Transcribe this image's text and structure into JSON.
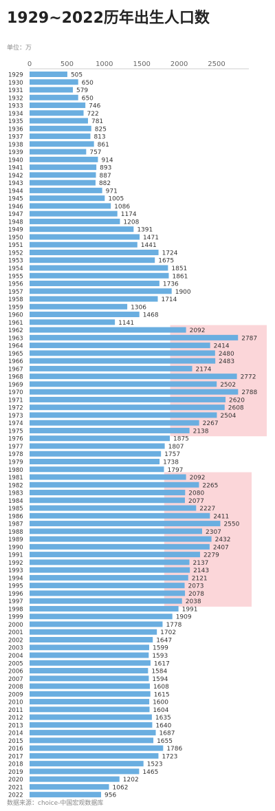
{
  "header": {
    "title": "1929~2022历年出生人口数",
    "unit_label": "单位：万"
  },
  "footer": {
    "source": "数据来源：choice-中国宏观数据库"
  },
  "colors": {
    "bar": "#6aaee0",
    "highlight": "#f9c8cc",
    "axis": "#cccccc"
  },
  "chart_data": {
    "type": "bar",
    "orientation": "horizontal",
    "xlim": [
      0,
      2800
    ],
    "xticks": [
      0,
      500,
      1000,
      1500,
      2000,
      2500
    ],
    "grid": false,
    "categories": [
      "1929",
      "1930",
      "1931",
      "1932",
      "1933",
      "1934",
      "1935",
      "1936",
      "1937",
      "1938",
      "1939",
      "1940",
      "1941",
      "1942",
      "1943",
      "1944",
      "1945",
      "1946",
      "1947",
      "1948",
      "1949",
      "1950",
      "1951",
      "1952",
      "1953",
      "1954",
      "1955",
      "1956",
      "1957",
      "1958",
      "1959",
      "1960",
      "1961",
      "1962",
      "1963",
      "1964",
      "1965",
      "1966",
      "1967",
      "1968",
      "1969",
      "1970",
      "1971",
      "1972",
      "1973",
      "1974",
      "1975",
      "1976",
      "1977",
      "1978",
      "1979",
      "1980",
      "1981",
      "1982",
      "1983",
      "1984",
      "1985",
      "1986",
      "1987",
      "1988",
      "1989",
      "1990",
      "1991",
      "1992",
      "1993",
      "1994",
      "1995",
      "1996",
      "1997",
      "1998",
      "1999",
      "2000",
      "2001",
      "2002",
      "2003",
      "2004",
      "2005",
      "2006",
      "2007",
      "2008",
      "2009",
      "2010",
      "2011",
      "2012",
      "2013",
      "2014",
      "2015",
      "2016",
      "2017",
      "2018",
      "2019",
      "2020",
      "2021",
      "2022"
    ],
    "values": [
      505,
      650,
      579,
      650,
      746,
      722,
      781,
      825,
      813,
      861,
      757,
      914,
      893,
      887,
      882,
      971,
      1005,
      1086,
      1174,
      1208,
      1391,
      1471,
      1441,
      1724,
      1675,
      1851,
      1861,
      1736,
      1900,
      1714,
      1306,
      1468,
      1141,
      2092,
      2787,
      2414,
      2480,
      2483,
      2174,
      2772,
      2502,
      2788,
      2620,
      2608,
      2504,
      2267,
      2138,
      1875,
      1807,
      1757,
      1738,
      1797,
      2092,
      2265,
      2080,
      2077,
      2227,
      2411,
      2550,
      2307,
      2432,
      2407,
      2279,
      2137,
      2143,
      2121,
      2073,
      2078,
      2038,
      1991,
      1909,
      1778,
      1702,
      1647,
      1599,
      1593,
      1617,
      1584,
      1594,
      1608,
      1615,
      1600,
      1604,
      1635,
      1640,
      1687,
      1655,
      1786,
      1723,
      1523,
      1465,
      1202,
      1062,
      956
    ],
    "highlights": [
      {
        "from": "1962",
        "to": "1975"
      },
      {
        "from": "1981",
        "to": "1997"
      }
    ]
  }
}
